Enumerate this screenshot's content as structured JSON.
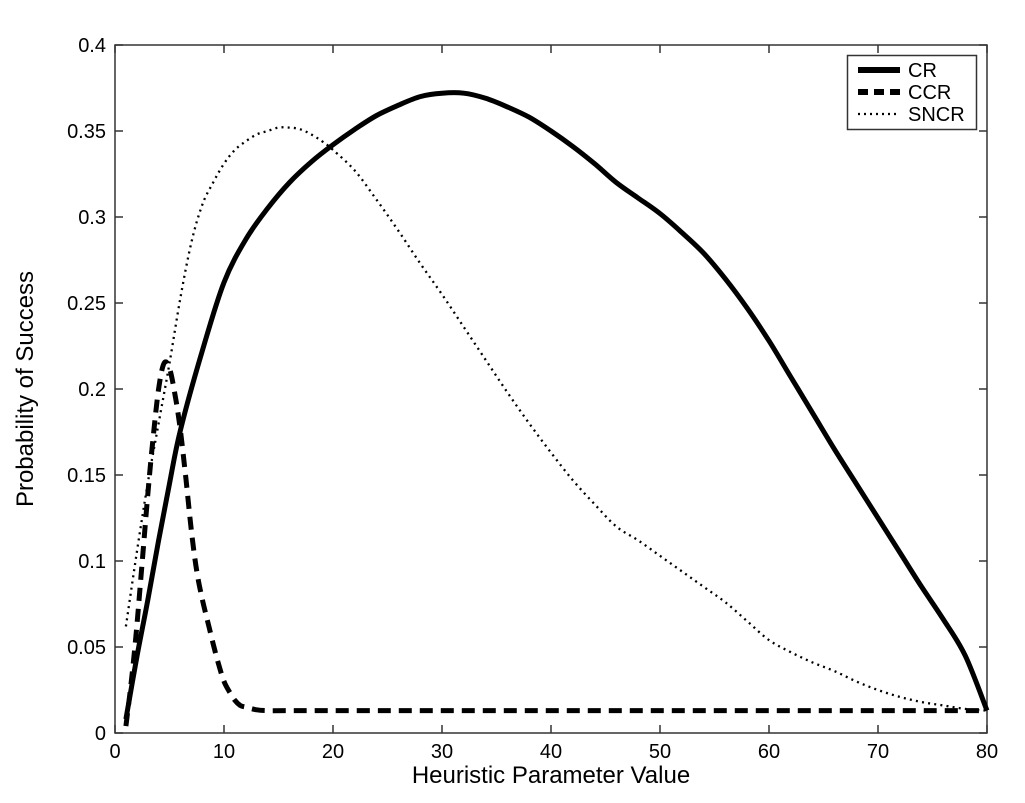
{
  "figure": {
    "background_color": "#ffffff",
    "axis_color": "#333333",
    "curve_color": "#000000"
  },
  "chart_data": {
    "type": "line",
    "title": "",
    "xlabel": "Heuristic Parameter Value",
    "ylabel": "Probability of Success",
    "xlim": [
      0,
      80
    ],
    "ylim": [
      0,
      0.4
    ],
    "grid": false,
    "legend_position": "top-right",
    "x_ticks": [
      0,
      10,
      20,
      30,
      40,
      50,
      60,
      70,
      80
    ],
    "x_tick_labels": [
      "0",
      "10",
      "20",
      "30",
      "40",
      "50",
      "60",
      "70",
      "80"
    ],
    "y_ticks": [
      0,
      0.05,
      0.1,
      0.15,
      0.2,
      0.25,
      0.3,
      0.35,
      0.4
    ],
    "y_tick_labels": [
      "0",
      "0.05",
      "0.1",
      "0.15",
      "0.2",
      "0.25",
      "0.3",
      "0.35",
      "0.4"
    ],
    "series": [
      {
        "name": "CR",
        "style": "solid",
        "x": [
          1,
          2,
          3,
          4,
          5,
          6,
          8,
          10,
          12,
          14,
          16,
          18,
          20,
          22,
          24,
          26,
          28,
          30,
          32,
          34,
          36,
          38,
          40,
          42,
          44,
          46,
          48,
          50,
          52,
          54,
          56,
          58,
          60,
          62,
          64,
          66,
          68,
          70,
          72,
          74,
          76,
          78,
          80
        ],
        "y": [
          0.008,
          0.044,
          0.077,
          0.112,
          0.145,
          0.176,
          0.222,
          0.262,
          0.287,
          0.305,
          0.32,
          0.332,
          0.342,
          0.351,
          0.359,
          0.365,
          0.37,
          0.372,
          0.372,
          0.369,
          0.364,
          0.358,
          0.35,
          0.341,
          0.331,
          0.32,
          0.311,
          0.302,
          0.291,
          0.279,
          0.264,
          0.247,
          0.228,
          0.207,
          0.186,
          0.165,
          0.145,
          0.125,
          0.105,
          0.085,
          0.066,
          0.045,
          0.013
        ]
      },
      {
        "name": "CCR",
        "style": "dashed",
        "x": [
          1,
          1.5,
          2,
          2.5,
          3,
          3.5,
          4,
          4.5,
          5,
          5.5,
          6,
          6.5,
          7,
          7.5,
          8,
          8.5,
          9,
          9.5,
          10,
          10.5,
          11,
          11.5,
          12,
          13,
          14,
          16,
          20,
          25,
          30,
          35,
          40,
          45,
          50,
          55,
          60,
          65,
          70,
          75,
          80
        ],
        "y": [
          0.004,
          0.03,
          0.062,
          0.1,
          0.138,
          0.172,
          0.2,
          0.215,
          0.212,
          0.197,
          0.176,
          0.148,
          0.118,
          0.094,
          0.078,
          0.065,
          0.052,
          0.04,
          0.03,
          0.024,
          0.019,
          0.016,
          0.015,
          0.0135,
          0.013,
          0.013,
          0.013,
          0.013,
          0.013,
          0.013,
          0.013,
          0.013,
          0.013,
          0.013,
          0.013,
          0.013,
          0.013,
          0.013,
          0.013
        ]
      },
      {
        "name": "SNCR",
        "style": "dotted",
        "x": [
          1,
          2,
          3,
          4,
          5,
          6,
          7,
          8,
          9,
          10,
          11,
          12,
          13,
          14,
          15,
          16,
          17,
          18,
          19,
          20,
          22,
          24,
          26,
          28,
          30,
          32,
          34,
          36,
          38,
          40,
          42,
          44,
          46,
          48,
          50,
          52,
          54,
          56,
          58,
          60,
          62,
          64,
          66,
          68,
          70,
          72,
          74,
          76,
          78,
          80
        ],
        "y": [
          0.062,
          0.105,
          0.145,
          0.18,
          0.215,
          0.253,
          0.285,
          0.307,
          0.32,
          0.331,
          0.339,
          0.344,
          0.348,
          0.35,
          0.352,
          0.352,
          0.351,
          0.348,
          0.344,
          0.339,
          0.327,
          0.31,
          0.292,
          0.273,
          0.255,
          0.236,
          0.217,
          0.198,
          0.18,
          0.163,
          0.147,
          0.133,
          0.12,
          0.112,
          0.103,
          0.094,
          0.085,
          0.076,
          0.065,
          0.054,
          0.047,
          0.041,
          0.036,
          0.03,
          0.025,
          0.021,
          0.018,
          0.016,
          0.014,
          0.013
        ]
      }
    ]
  }
}
